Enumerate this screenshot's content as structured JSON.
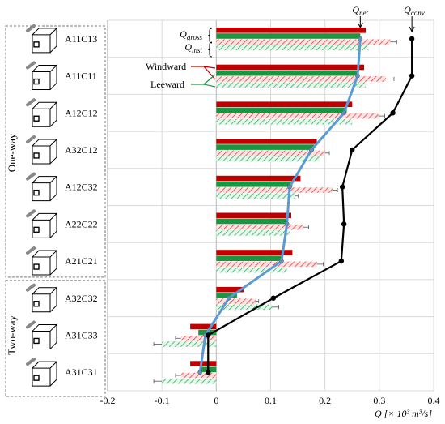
{
  "chart_data": {
    "type": "bar",
    "orientation": "horizontal",
    "xlabel": "Q [× 10³ m³/s]",
    "xlim": [
      -0.2,
      0.4
    ],
    "xticks": [
      "-0.2",
      "-0.1",
      "0",
      "0.1",
      "0.2",
      "0.3",
      "0.4"
    ],
    "grid": "vertical",
    "group_labels": [
      "One-way",
      "Two-way"
    ],
    "categories": [
      "A11C13",
      "A11C11",
      "A12C12",
      "A32C12",
      "A12C32",
      "A22C22",
      "A21C21",
      "A32C32",
      "A31C33",
      "A31C31"
    ],
    "category_group": [
      0,
      0,
      0,
      0,
      0,
      0,
      0,
      1,
      1,
      1
    ],
    "series": [
      {
        "name": "Q_gross (Windward)",
        "color": "#c00000",
        "pattern": "solid",
        "values": [
          0.275,
          0.272,
          0.25,
          0.185,
          0.155,
          0.138,
          0.14,
          0.05,
          -0.048,
          -0.048
        ]
      },
      {
        "name": "Q_inst (Windward)",
        "color": "#f4a7a7",
        "pattern": "hatch",
        "values": [
          0.32,
          0.312,
          0.298,
          0.2,
          0.215,
          0.16,
          0.185,
          0.073,
          -0.065,
          -0.065
        ],
        "errors": [
          0.012,
          0.015,
          0.012,
          0.008,
          0.008,
          0.01,
          0.012,
          0.005,
          0.01,
          0.01
        ]
      },
      {
        "name": "Q_gross (Leeward)",
        "color": "#1a9641",
        "pattern": "solid",
        "values": [
          0.265,
          0.262,
          0.24,
          0.18,
          0.14,
          0.13,
          0.12,
          0.038,
          -0.033,
          -0.03
        ]
      },
      {
        "name": "Q_inst (Leeward)",
        "color": "#a8e6bf",
        "pattern": "hatch",
        "values": [
          0.28,
          0.275,
          0.25,
          0.19,
          0.145,
          0.135,
          0.13,
          0.105,
          -0.1,
          -0.1
        ],
        "errors": [
          0,
          0,
          0,
          0,
          0.006,
          0,
          0,
          0.01,
          0.015,
          0.015
        ]
      }
    ],
    "lines": [
      {
        "name": "Q_net",
        "color": "#5b9bd5",
        "values": [
          0.265,
          0.26,
          0.235,
          0.175,
          0.135,
          0.13,
          0.12,
          0.023,
          -0.02,
          -0.03
        ]
      },
      {
        "name": "Q_conv",
        "color": "#000000",
        "markers": true,
        "values": [
          0.36,
          0.36,
          0.325,
          0.25,
          0.232,
          0.235,
          0.23,
          0.105,
          -0.015,
          -0.015
        ]
      }
    ],
    "annotations": {
      "top_net": "Q",
      "top_net_sub": "net",
      "top_conv": "Q",
      "top_conv_sub": "conv",
      "gross": "Q",
      "gross_sub": "gross",
      "inst": "Q",
      "inst_sub": "inst",
      "windward": "Windward",
      "leeward": "Leeward"
    }
  }
}
